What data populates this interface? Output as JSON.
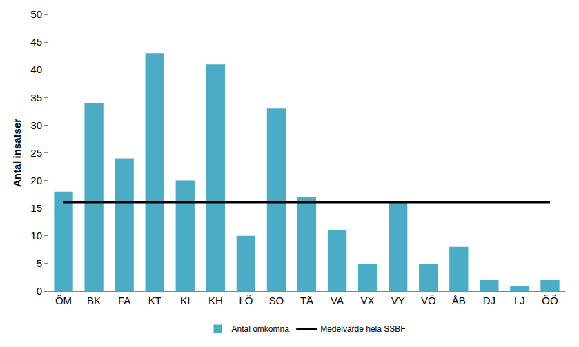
{
  "chart_data": {
    "type": "bar",
    "y_label": "Antal insatser",
    "categories": [
      "ÖM",
      "BK",
      "FA",
      "KT",
      "KI",
      "KH",
      "LÖ",
      "SO",
      "TÄ",
      "VA",
      "VX",
      "VY",
      "VÖ",
      "ÅB",
      "DJ",
      "LJ",
      "ÖÖ"
    ],
    "series": [
      {
        "name": "Antal omkomna",
        "type": "bar",
        "color": "#4bacc6",
        "values": [
          18,
          34,
          24,
          43,
          20,
          41,
          10,
          33,
          17,
          11,
          5,
          16,
          5,
          8,
          2,
          1,
          2
        ]
      },
      {
        "name": "Medelvärde hela SSBF",
        "type": "line",
        "color": "#000000",
        "values": [
          16.1,
          16.1,
          16.1,
          16.1,
          16.1,
          16.1,
          16.1,
          16.1,
          16.1,
          16.1,
          16.1,
          16.1,
          16.1,
          16.1,
          16.1,
          16.1,
          16.1
        ]
      }
    ],
    "ylim": [
      0,
      50
    ],
    "yticks": [
      0,
      5,
      10,
      15,
      20,
      25,
      30,
      35,
      40,
      45,
      50
    ],
    "grid": false,
    "legend": "bottom"
  }
}
